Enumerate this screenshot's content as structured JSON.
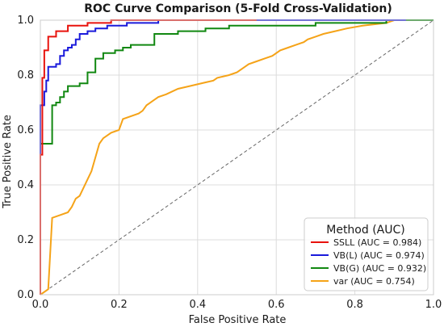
{
  "chart_data": {
    "type": "line",
    "title": "ROC Curve Comparison (5-Fold Cross-Validation)",
    "xlabel": "False Positive Rate",
    "ylabel": "True Positive Rate",
    "xlim": [
      0.0,
      1.0
    ],
    "ylim": [
      0.0,
      1.0
    ],
    "xticks": [
      "0.0",
      "0.2",
      "0.4",
      "0.6",
      "0.8",
      "1.0"
    ],
    "yticks": [
      "0.0",
      "0.2",
      "0.4",
      "0.6",
      "0.8",
      "1.0"
    ],
    "grid": true,
    "legend": {
      "title": "Method (AUC)",
      "placement": "lower-right"
    },
    "diagonal": {
      "color": "#666666",
      "style": "dashed"
    },
    "series": [
      {
        "name": "SSLL (AUC = 0.984)",
        "color": "#e8120c",
        "x": [
          0.0,
          0.0,
          0.005,
          0.005,
          0.01,
          0.01,
          0.02,
          0.02,
          0.04,
          0.04,
          0.07,
          0.07,
          0.12,
          0.12,
          0.18,
          0.18,
          0.28,
          0.28,
          0.55
        ],
        "y": [
          0.0,
          0.51,
          0.51,
          0.79,
          0.79,
          0.89,
          0.89,
          0.94,
          0.94,
          0.96,
          0.96,
          0.98,
          0.98,
          0.99,
          0.99,
          1.0,
          1.0,
          1.0,
          1.0
        ]
      },
      {
        "name": "VB(L) (AUC = 0.974)",
        "color": "#1a1adb",
        "x": [
          0.0,
          0.0,
          0.01,
          0.01,
          0.015,
          0.015,
          0.02,
          0.02,
          0.04,
          0.04,
          0.05,
          0.05,
          0.06,
          0.06,
          0.07,
          0.07,
          0.08,
          0.08,
          0.09,
          0.09,
          0.1,
          0.1,
          0.12,
          0.12,
          0.14,
          0.14,
          0.17,
          0.17,
          0.22,
          0.22,
          0.3,
          0.3,
          0.47,
          0.47,
          0.93
        ],
        "y": [
          0.0,
          0.69,
          0.69,
          0.74,
          0.74,
          0.78,
          0.78,
          0.83,
          0.83,
          0.84,
          0.84,
          0.87,
          0.87,
          0.89,
          0.89,
          0.9,
          0.9,
          0.91,
          0.91,
          0.93,
          0.93,
          0.95,
          0.95,
          0.96,
          0.96,
          0.97,
          0.97,
          0.98,
          0.98,
          0.99,
          0.99,
          1.0,
          1.0,
          1.0,
          1.0
        ]
      },
      {
        "name": "VB(G) (AUC = 0.932)",
        "color": "#118811",
        "x": [
          0.0,
          0.0,
          0.03,
          0.03,
          0.04,
          0.04,
          0.05,
          0.05,
          0.06,
          0.06,
          0.07,
          0.07,
          0.1,
          0.1,
          0.12,
          0.12,
          0.14,
          0.14,
          0.16,
          0.16,
          0.19,
          0.19,
          0.21,
          0.21,
          0.23,
          0.23,
          0.29,
          0.29,
          0.35,
          0.35,
          0.42,
          0.42,
          0.48,
          0.48,
          0.55,
          0.55,
          0.7,
          0.7,
          0.88,
          0.88,
          0.9,
          0.9,
          1.0
        ],
        "y": [
          0.0,
          0.55,
          0.55,
          0.69,
          0.69,
          0.7,
          0.7,
          0.72,
          0.72,
          0.74,
          0.74,
          0.76,
          0.76,
          0.77,
          0.77,
          0.81,
          0.81,
          0.86,
          0.86,
          0.88,
          0.88,
          0.89,
          0.89,
          0.9,
          0.9,
          0.91,
          0.91,
          0.95,
          0.95,
          0.96,
          0.96,
          0.97,
          0.97,
          0.98,
          0.98,
          0.98,
          0.98,
          0.99,
          0.99,
          1.0,
          1.0,
          1.0,
          1.0
        ]
      },
      {
        "name": "var (AUC = 0.754)",
        "color": "#f5a318",
        "x": [
          0.0,
          0.02,
          0.02,
          0.03,
          0.03,
          0.05,
          0.05,
          0.07,
          0.07,
          0.08,
          0.08,
          0.09,
          0.09,
          0.1,
          0.1,
          0.12,
          0.12,
          0.13,
          0.13,
          0.14,
          0.14,
          0.15,
          0.15,
          0.16,
          0.16,
          0.17,
          0.17,
          0.18,
          0.18,
          0.2,
          0.2,
          0.21,
          0.21,
          0.25,
          0.25,
          0.26,
          0.26,
          0.27,
          0.27,
          0.29,
          0.29,
          0.3,
          0.3,
          0.32,
          0.32,
          0.35,
          0.35,
          0.38,
          0.38,
          0.44,
          0.44,
          0.45,
          0.45,
          0.48,
          0.48,
          0.5,
          0.5,
          0.52,
          0.52,
          0.53,
          0.53,
          0.55,
          0.55,
          0.57,
          0.57,
          0.59,
          0.59,
          0.61,
          0.61,
          0.63,
          0.63,
          0.65,
          0.65,
          0.67,
          0.67,
          0.68,
          0.68,
          0.7,
          0.7,
          0.72,
          0.72,
          0.75,
          0.75,
          0.78,
          0.78,
          0.82,
          0.82,
          0.88,
          0.88,
          0.9,
          0.9,
          1.0
        ],
        "y": [
          0.0,
          0.02,
          0.02,
          0.28,
          0.28,
          0.29,
          0.29,
          0.3,
          0.3,
          0.32,
          0.32,
          0.35,
          0.35,
          0.36,
          0.36,
          0.42,
          0.42,
          0.45,
          0.45,
          0.5,
          0.5,
          0.55,
          0.55,
          0.57,
          0.57,
          0.58,
          0.58,
          0.59,
          0.59,
          0.6,
          0.6,
          0.64,
          0.64,
          0.66,
          0.66,
          0.67,
          0.67,
          0.69,
          0.69,
          0.71,
          0.71,
          0.72,
          0.72,
          0.73,
          0.73,
          0.75,
          0.75,
          0.76,
          0.76,
          0.78,
          0.78,
          0.79,
          0.79,
          0.8,
          0.8,
          0.81,
          0.81,
          0.83,
          0.83,
          0.84,
          0.84,
          0.85,
          0.85,
          0.86,
          0.86,
          0.87,
          0.87,
          0.89,
          0.89,
          0.9,
          0.9,
          0.91,
          0.91,
          0.92,
          0.92,
          0.93,
          0.93,
          0.94,
          0.94,
          0.95,
          0.95,
          0.96,
          0.96,
          0.97,
          0.97,
          0.98,
          0.98,
          0.99,
          0.99,
          1.0,
          1.0,
          1.0
        ]
      }
    ]
  }
}
